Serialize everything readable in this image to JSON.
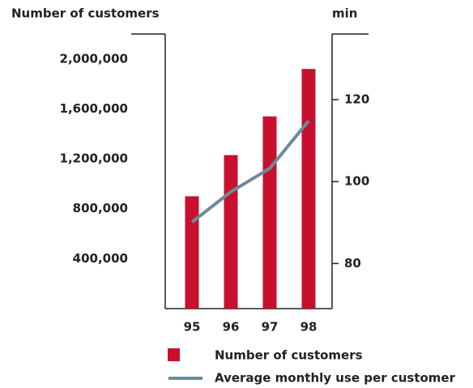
{
  "chart_data": {
    "type": "bar_line",
    "ylabel": "Number of customers",
    "y2label": "min",
    "categories": [
      "95",
      "96",
      "97",
      "98"
    ],
    "series": [
      {
        "name": "Number of customers",
        "color": "#c8102e",
        "values": [
          900000,
          1230000,
          1540000,
          1920000
        ]
      },
      {
        "name": "Average monthly use per customer",
        "color": "#6e8a99",
        "axis": "y2",
        "values": [
          90.1,
          97.5,
          103.2,
          114.8
        ]
      }
    ],
    "ylim": [
      0,
      2200000
    ],
    "yticks": [
      {
        "value": 400000,
        "label": "400,000"
      },
      {
        "value": 800000,
        "label": "800,000"
      },
      {
        "value": 1200000,
        "label": "1,200,000"
      },
      {
        "value": 1600000,
        "label": "1,600,000"
      },
      {
        "value": 2000000,
        "label": "2,000,000"
      }
    ],
    "y2lim": [
      69,
      136
    ],
    "y2ticks": [
      80,
      100,
      120
    ]
  }
}
